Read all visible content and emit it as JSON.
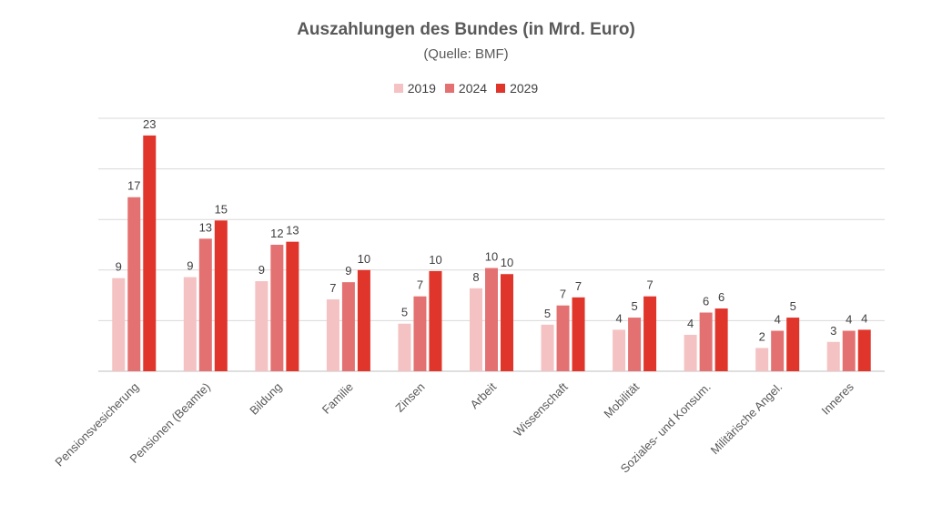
{
  "chart_data": {
    "type": "bar",
    "title": "Auszahlungen des Bundes (in Mrd. Euro)",
    "subtitle": "(Quelle: BMF)",
    "categories": [
      "Pensionsvesicherung",
      "Pensionen (Beamte)",
      "Bildung",
      "Familie",
      "Zinsen",
      "Arbeit",
      "Wissenschaft",
      "Mobilität",
      "Soziales- und Konsum.",
      "Militärische Angel.",
      "Inneres"
    ],
    "series": [
      {
        "name": "2019",
        "color": "#f4c2c2",
        "values": [
          9.2,
          9.3,
          8.9,
          7.1,
          4.7,
          8.2,
          4.6,
          4.1,
          3.6,
          2.3,
          2.9
        ]
      },
      {
        "name": "2024",
        "color": "#e47171",
        "values": [
          17.2,
          13.1,
          12.5,
          8.8,
          7.4,
          10.2,
          6.5,
          5.3,
          5.8,
          4.0,
          4.0
        ]
      },
      {
        "name": "2029",
        "color": "#e0352b",
        "values": [
          23.3,
          14.9,
          12.8,
          10.0,
          9.9,
          9.6,
          7.3,
          7.4,
          6.2,
          5.3,
          4.1
        ]
      }
    ],
    "data_labels": [
      [
        "9",
        "9",
        "9",
        "7",
        "5",
        "8",
        "5",
        "4",
        "4",
        "2",
        "3"
      ],
      [
        "17",
        "13",
        "12",
        "9",
        "7",
        "10",
        "7",
        "5",
        "6",
        "4",
        "4"
      ],
      [
        "23",
        "15",
        "13",
        "10",
        "10",
        "10",
        "7",
        "7",
        "6",
        "5",
        "4"
      ]
    ],
    "ylim": [
      0,
      25
    ],
    "y_gridlines": [
      0,
      5,
      10,
      15,
      20,
      25
    ],
    "grid": true,
    "legend_position": "top-center",
    "xlabel": "",
    "ylabel": ""
  }
}
